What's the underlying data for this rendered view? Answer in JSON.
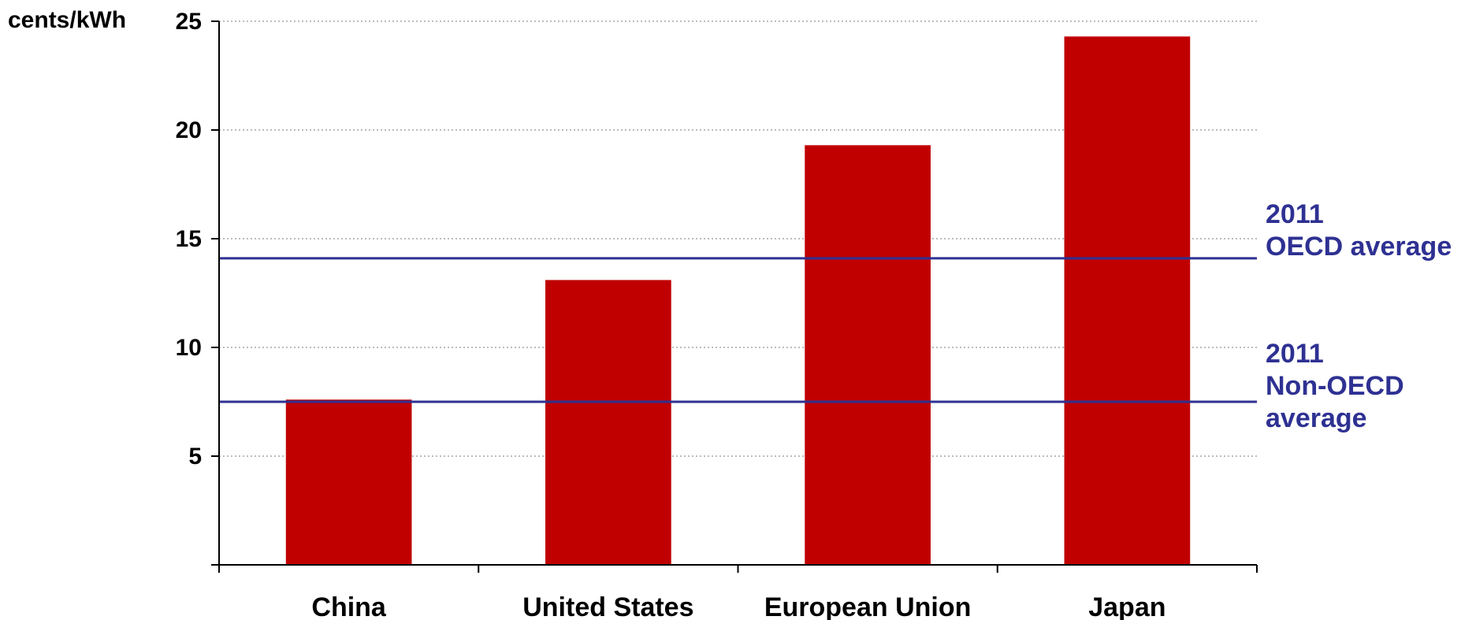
{
  "chart_data": {
    "type": "bar",
    "title": "",
    "xlabel": "",
    "ylabel": "cents/kWh",
    "categories": [
      "China",
      "United States",
      "European Union",
      "Japan"
    ],
    "values": [
      7.6,
      13.1,
      19.3,
      24.3
    ],
    "ylim": [
      0,
      25
    ],
    "yticks": [
      5,
      10,
      15,
      20,
      25
    ],
    "grid": "horizontal-dotted",
    "reference_lines": [
      {
        "value": 14.1,
        "label_lines": [
          "2011",
          "OECD average"
        ]
      },
      {
        "value": 7.5,
        "label_lines": [
          "2011",
          "Non-OECD",
          "average"
        ]
      }
    ]
  },
  "colors": {
    "bar": "#C00000",
    "reference_line": "#2E3192",
    "reference_label": "#2E3192",
    "axis": "#000000",
    "text": "#000000",
    "grid": "#A6A6A6"
  }
}
